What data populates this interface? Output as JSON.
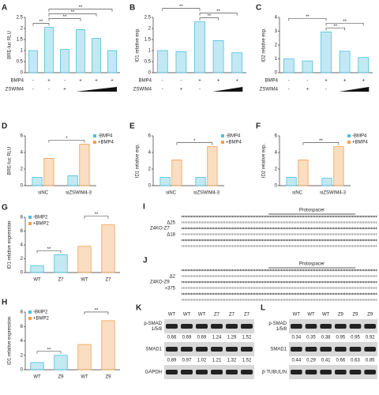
{
  "chart_data": [
    {
      "type": "bar",
      "label": "A",
      "y_label": "BRE-luc RLU",
      "values": [
        1.0,
        2.05,
        1.05,
        1.95,
        1.55,
        1.0
      ],
      "color": "#4fc0dc",
      "ylim": [
        0,
        2.5
      ],
      "yticks": [
        0,
        0.5,
        1,
        1.5,
        2,
        2.5
      ],
      "conditions": [
        {
          "name": "BMP4",
          "marks": [
            "-",
            "+",
            "-",
            "+",
            "+",
            "+"
          ]
        },
        {
          "name": "ZSWIM4",
          "marks": [
            "-",
            "-",
            "+",
            null,
            null,
            null
          ]
        }
      ],
      "brackets": [
        {
          "text": "**",
          "between": [
            0,
            1
          ]
        },
        {
          "text": "**",
          "between": [
            1,
            3
          ]
        },
        {
          "text": "**",
          "between": [
            1,
            4
          ]
        },
        {
          "text": "**",
          "between": [
            1,
            5
          ]
        }
      ]
    },
    {
      "type": "bar",
      "label": "B",
      "y_label": "ID1 relative exp.",
      "values": [
        1.0,
        0.95,
        2.3,
        1.45,
        0.9
      ],
      "color": "#4fc0dc",
      "ylim": [
        0,
        2.5
      ],
      "yticks": [
        0,
        0.5,
        1,
        1.5,
        2,
        2.5
      ],
      "conditions": [
        {
          "name": "BMP4",
          "marks": [
            "-",
            "-",
            "+",
            "+",
            "+"
          ]
        },
        {
          "name": "ZSWIM4",
          "marks": [
            "-",
            "+",
            "-",
            null,
            null
          ]
        }
      ],
      "brackets": [
        {
          "text": "**",
          "between": [
            2,
            3
          ]
        },
        {
          "text": "**",
          "between": [
            2,
            4
          ]
        },
        {
          "text": "**",
          "between": [
            0,
            2
          ]
        }
      ]
    },
    {
      "type": "bar",
      "label": "C",
      "y_label": "ID2 relative exp.",
      "values": [
        1.0,
        0.85,
        2.95,
        1.55,
        1.1
      ],
      "color": "#4fc0dc",
      "ylim": [
        0,
        4
      ],
      "yticks": [
        0,
        1,
        2,
        3,
        4
      ],
      "conditions": [
        {
          "name": "BMP4",
          "marks": [
            "-",
            "-",
            "+",
            "+",
            "+"
          ]
        },
        {
          "name": "ZSWIM4",
          "marks": [
            "-",
            "+",
            "-",
            null,
            null
          ]
        }
      ],
      "brackets": [
        {
          "text": "**",
          "between": [
            2,
            3
          ]
        },
        {
          "text": "**",
          "between": [
            2,
            4
          ]
        },
        {
          "text": "**",
          "between": [
            0,
            2
          ]
        }
      ]
    },
    {
      "type": "bar",
      "label": "D",
      "y_label": "BRE-luc RLU",
      "categories": [
        "siNC",
        "siZSWIM4-3"
      ],
      "legend": "upper right",
      "series": [
        {
          "name": "-BMP4",
          "color": "#4fc0dc",
          "values": [
            1.0,
            1.2
          ]
        },
        {
          "name": "+BMP4",
          "color": "#f0a050",
          "values": [
            3.3,
            5.0
          ]
        }
      ],
      "ylim": [
        0,
        6
      ],
      "yticks": [
        0,
        2,
        4,
        6
      ],
      "brackets": [
        {
          "text": "*",
          "between": [
            1,
            3
          ]
        }
      ]
    },
    {
      "type": "bar",
      "label": "E",
      "y_label": "ID1 relative exp.",
      "categories": [
        "siNC",
        "siZSWIM4-3"
      ],
      "legend": "upper right",
      "series": [
        {
          "name": "-BMP4",
          "color": "#4fc0dc",
          "values": [
            1.0,
            1.0
          ]
        },
        {
          "name": "+BMP4",
          "color": "#f0a050",
          "values": [
            3.1,
            4.7
          ]
        }
      ],
      "ylim": [
        0,
        6
      ],
      "yticks": [
        0,
        2,
        4,
        6
      ],
      "brackets": [
        {
          "text": "*",
          "between": [
            1,
            3
          ]
        }
      ]
    },
    {
      "type": "bar",
      "label": "F",
      "y_label": "ID2 relative exp.",
      "categories": [
        "siNC",
        "siZSWIM4-3"
      ],
      "legend": "upper right",
      "series": [
        {
          "name": "-BMP4",
          "color": "#4fc0dc",
          "values": [
            1.0,
            0.9
          ]
        },
        {
          "name": "+BMP4",
          "color": "#f0a050",
          "values": [
            3.1,
            4.7
          ]
        }
      ],
      "ylim": [
        0,
        6
      ],
      "yticks": [
        0,
        2,
        4,
        6
      ],
      "brackets": [
        {
          "text": "**",
          "between": [
            1,
            3
          ]
        }
      ]
    },
    {
      "type": "bar",
      "label": "G",
      "y_label": "ID1 relative expression",
      "categories": [
        "WT",
        "Z7",
        "WT",
        "Z7"
      ],
      "legend": "upper left",
      "series": [
        {
          "name": "-BMP2",
          "color": "#4fc0dc",
          "values": [
            1.0,
            2.6,
            null,
            null
          ]
        },
        {
          "name": "+BMP2",
          "color": "#f0a050",
          "values": [
            null,
            null,
            3.8,
            6.9
          ]
        }
      ],
      "ylim": [
        0,
        8
      ],
      "yticks": [
        0,
        2,
        4,
        6,
        8
      ],
      "brackets": [
        {
          "text": "**",
          "between": [
            0,
            1
          ]
        },
        {
          "text": "**",
          "between": [
            2,
            3
          ]
        }
      ]
    },
    {
      "type": "bar",
      "label": "H",
      "y_label": "ID1 relative expression",
      "categories": [
        "WT",
        "Z9",
        "WT",
        "Z9"
      ],
      "legend": "upper left",
      "series": [
        {
          "name": "-BMP2",
          "color": "#4fc0dc",
          "values": [
            1.0,
            2.0,
            null,
            null
          ]
        },
        {
          "name": "+BMP2",
          "color": "#f0a050",
          "values": [
            null,
            null,
            3.5,
            6.8
          ]
        }
      ],
      "ylim": [
        0,
        8
      ],
      "yticks": [
        0,
        2,
        4,
        6,
        8
      ],
      "brackets": [
        {
          "text": "**",
          "between": [
            0,
            1
          ]
        },
        {
          "text": "**",
          "between": [
            2,
            3
          ]
        }
      ]
    }
  ],
  "sequences": [
    {
      "label": "I",
      "title": "Protospacer",
      "clone": "Z4KO-Z7",
      "alleles": [
        "Δ25",
        "Δ18"
      ]
    },
    {
      "label": "J",
      "title": "Protospacer",
      "clone": "Z4KO-Z9",
      "alleles": [
        "Δ2",
        "+375"
      ]
    }
  ],
  "blots": [
    {
      "label": "K",
      "lanes": [
        "WT",
        "WT",
        "WT",
        "Z7",
        "Z7",
        "Z7"
      ],
      "rows": [
        {
          "name": [
            "p-SMAD",
            "1/5/8"
          ],
          "values": [
            0.66,
            0.69,
            0.69,
            1.24,
            1.29,
            1.52
          ]
        },
        {
          "name": [
            "SMAD1"
          ],
          "values": [
            0.89,
            0.97,
            1.02,
            1.21,
            1.32,
            1.52
          ]
        },
        {
          "name": [
            "GAPDH"
          ]
        }
      ]
    },
    {
      "label": "L",
      "lanes": [
        "WT",
        "WT",
        "WT",
        "Z9",
        "Z9",
        "Z9"
      ],
      "rows": [
        {
          "name": [
            "p-SMAD",
            "1/5/8"
          ],
          "values": [
            0.34,
            0.35,
            0.38,
            0.95,
            0.95,
            0.92
          ]
        },
        {
          "name": [
            "SMAD1"
          ],
          "values": [
            0.44,
            0.29,
            0.41,
            0.66,
            0.63,
            0.85
          ]
        },
        {
          "name": [
            "β-TUBULIN"
          ]
        }
      ]
    }
  ]
}
